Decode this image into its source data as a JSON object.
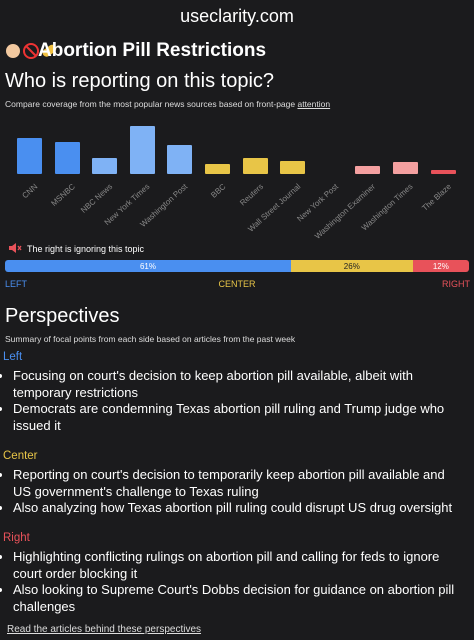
{
  "site": "useclarity.com",
  "title": "Abortion Pill Restrictions",
  "coverage": {
    "heading": "Who is reporting on this topic?",
    "subtitle": "Compare coverage from the most popular news sources based on front-page",
    "subtitle_link": "attention",
    "type": "bar",
    "categories": [
      "CNN",
      "MSNBC",
      "NBC News",
      "New York Times",
      "Washington Post",
      "BBC",
      "Reuters",
      "Wall Street Journal",
      "New York Post",
      "Washington Examiner",
      "Washington Times",
      "The Blaze"
    ],
    "values": [
      37,
      33,
      17,
      50,
      30,
      10,
      17,
      14,
      0,
      8,
      13,
      4
    ],
    "colors": [
      "#4a8ff0",
      "#4a8ff0",
      "#7fb2f5",
      "#7fb2f5",
      "#7fb2f5",
      "#e8c547",
      "#e8c547",
      "#e8c547",
      "#f4a0a0",
      "#f4a0a0",
      "#f4a0a0",
      "#e8525a"
    ],
    "notice": "The right is ignoring this topic",
    "distribution": {
      "values": [
        61,
        26,
        12
      ],
      "value_labels": [
        "61%",
        "26%",
        "12%"
      ],
      "colors": [
        "#4a8ff0",
        "#e8c547",
        "#e8525a"
      ],
      "labels": [
        "LEFT",
        "CENTER",
        "RIGHT"
      ]
    }
  },
  "perspectives": {
    "heading": "Perspectives",
    "subtitle": "Summary of focal points from each side based on articles from the past week",
    "groups": [
      {
        "label": "Left",
        "color": "#4a8ff0",
        "points": [
          "Focusing on court's decision to keep abortion pill available, albeit with temporary restrictions",
          "Democrats are condemning Texas abortion pill ruling and Trump judge who issued it"
        ]
      },
      {
        "label": "Center",
        "color": "#e8c547",
        "points": [
          "Reporting on court's decision to temporarily keep abortion pill available and US government's challenge to Texas ruling",
          "Also analyzing how Texas abortion pill ruling could disrupt US drug oversight"
        ]
      },
      {
        "label": "Right",
        "color": "#e8525a",
        "points": [
          "Highlighting conflicting rulings on abortion pill and calling for feds to ignore court order blocking it",
          "Also looking to Supreme Court's Dobbs decision for guidance on abortion pill challenges"
        ]
      }
    ],
    "link": "Read the articles behind these perspectives"
  }
}
